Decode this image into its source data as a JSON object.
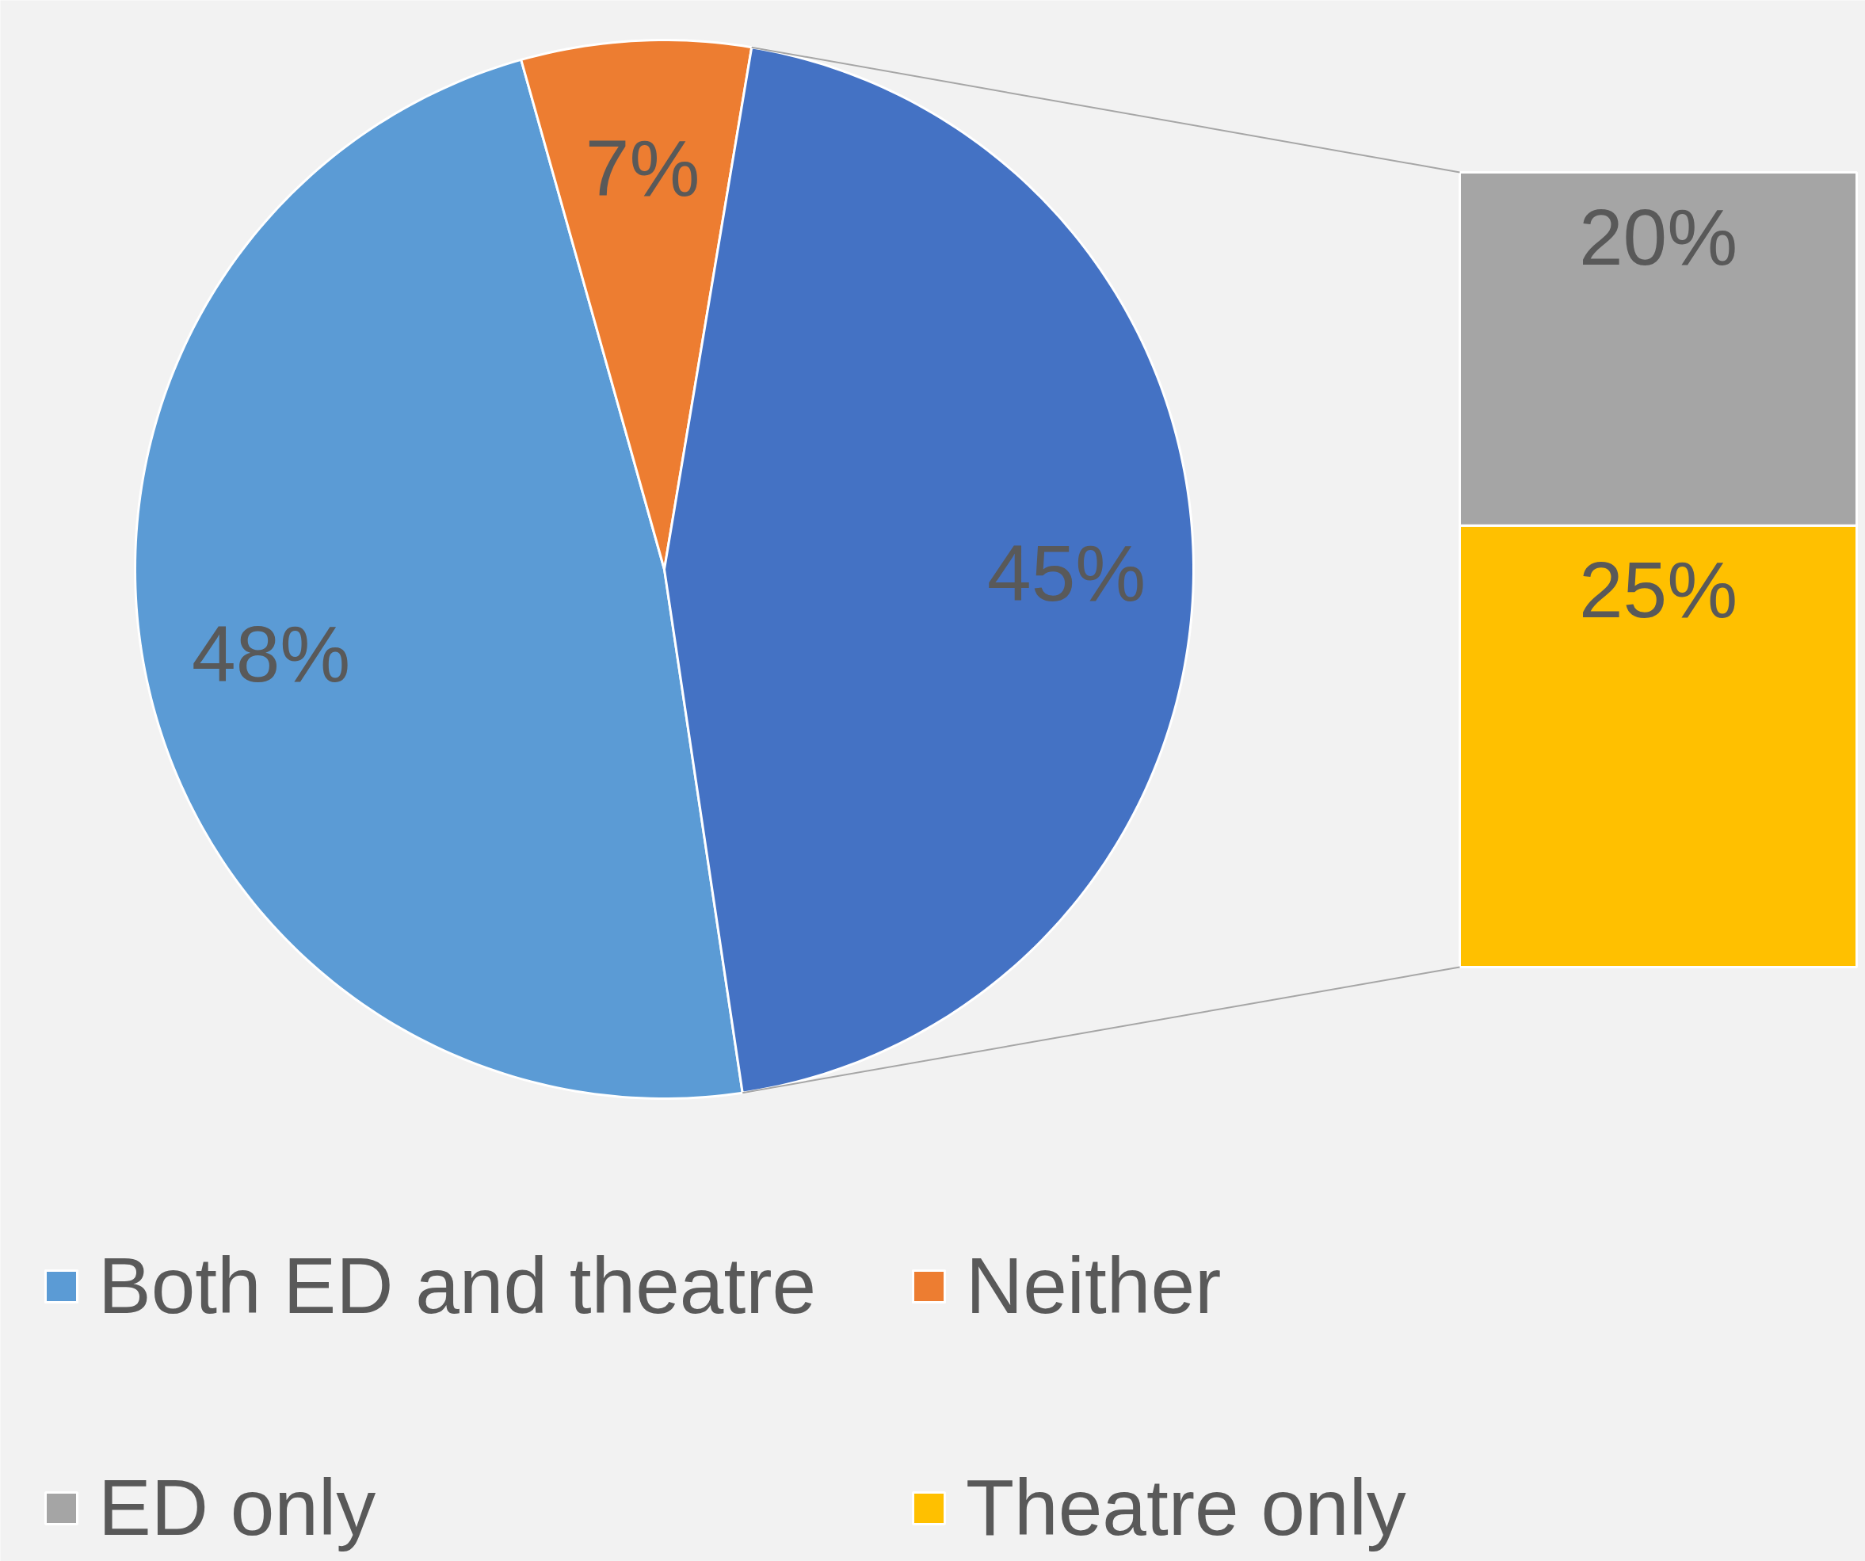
{
  "chart_data": [
    {
      "type": "pie",
      "categories": [
        "Both ED and theatre",
        "Neither",
        null
      ],
      "values": [
        48,
        7,
        45
      ],
      "colors": [
        "#5b9bd5",
        "#ed7d31",
        "#4472c4"
      ],
      "value_labels": [
        "48%",
        "7%",
        "45%"
      ],
      "legend": "bottom"
    },
    {
      "type": "bar",
      "stacked": true,
      "categories": [
        null
      ],
      "series": [
        {
          "name": "Theatre only",
          "color": "#ffc000",
          "values": [
            25
          ],
          "value_labels": [
            "25%"
          ]
        },
        {
          "name": "ED only",
          "color": "#a5a5a5",
          "values": [
            20
          ],
          "value_labels": [
            "20%"
          ]
        }
      ],
      "legend": "bottom"
    }
  ]
}
